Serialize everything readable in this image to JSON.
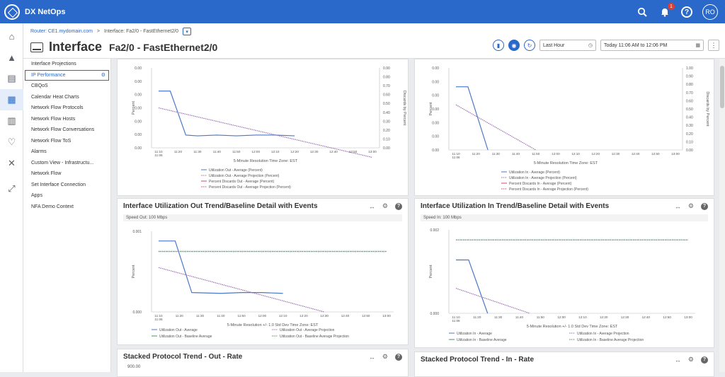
{
  "app": {
    "title": "DX NetOps",
    "notif_count": "1",
    "user_initials": "RO"
  },
  "breadcrumb": {
    "router": "Router: CE1.mydomain.com",
    "sep": ">",
    "current": "Interface: Fa2/0 - FastEthernet2/0"
  },
  "page": {
    "title": "Interface",
    "subtitle": "Fa2/0 - FastEthernet2/0"
  },
  "controls": {
    "range": "Last Hour",
    "date": "Today 11:06 AM to 12:06 PM"
  },
  "sidebar": {
    "items": [
      {
        "label": "Interface Projections"
      },
      {
        "label": "IP Performance"
      },
      {
        "label": "CBQoS"
      },
      {
        "label": "Calendar Heat Charts"
      },
      {
        "label": "Network Flow Protocols"
      },
      {
        "label": "Network Flow Hosts"
      },
      {
        "label": "Network Flow Conversations"
      },
      {
        "label": "Network Flow ToS"
      },
      {
        "label": "Alarms"
      },
      {
        "label": "Custom View - Infrastructu..."
      },
      {
        "label": "Network Flow"
      },
      {
        "label": "Set Interface Connection"
      },
      {
        "label": "Apps"
      },
      {
        "label": "NFA Demo Context"
      }
    ]
  },
  "panels": {
    "tl": {
      "y_left": [
        "0.00",
        "0.00",
        "0.00",
        "0.00",
        "0.00",
        "0.00",
        "0.00"
      ],
      "y_right": [
        "0.90",
        "0.80",
        "0.70",
        "0.60",
        "0.50",
        "0.40",
        "0.30",
        "0.20",
        "0.10",
        "0.00"
      ],
      "ylabel": "Percent",
      "ylabel2": "Discards by Percent",
      "xticks": [
        "11:10\n11:06",
        "11:20",
        "11:30",
        "11:40",
        "11:50",
        "12:00",
        "12:10",
        "12:20",
        "12:30",
        "12:40",
        "12:50",
        "13:00"
      ],
      "xlabel": "5-Minute Resolution Time Zone: EST",
      "legend": [
        "Utilization Out - Average (Percent)",
        "Utilization Out - Average Projection (Percent)",
        "Percent Discards Out - Average (Percent)",
        "Percent Discards Out - Average Projection (Percent)"
      ]
    },
    "tr": {
      "y_left": [
        "0.00",
        "0.00",
        "0.00",
        "0.00",
        "0.00",
        "0.00",
        "0.00"
      ],
      "y_right": [
        "1.00",
        "0.90",
        "0.80",
        "0.70",
        "0.60",
        "0.50",
        "0.40",
        "0.30",
        "0.20",
        "0.10",
        "0.00"
      ],
      "ylabel": "Percent",
      "ylabel2": "Discards by Percent",
      "xticks": [
        "11:10\n11:06",
        "11:20",
        "11:30",
        "11:40",
        "11:50",
        "12:00",
        "12:10",
        "12:20",
        "12:30",
        "12:40",
        "12:50",
        "13:00"
      ],
      "xlabel": "5-Minute Resolution Time Zone: EST",
      "legend": [
        "Utilization In - Average (Percent)",
        "Utilization In - Average Projection (Percent)",
        "Percent Discards In - Average (Percent)",
        "Percent Discards In - Average Projection (Percent)"
      ]
    },
    "ml": {
      "title": "Interface Utilization Out Trend/Baseline Detail with Events",
      "speed": "Speed Out: 100 Mbps",
      "y": [
        "0.001",
        "0.000"
      ],
      "ylabel": "Percent",
      "xticks": [
        "11:10\n11:06",
        "11:20",
        "11:30",
        "11:40",
        "11:50",
        "12:00",
        "12:10",
        "12:20",
        "12:30",
        "12:40",
        "12:50",
        "13:00"
      ],
      "xlabel": "5-Minute Resolution +/- 1.0 Std Dev Time Zone: EST",
      "legend": [
        "Utilization Out - Average",
        "Utilization Out - Average Projection",
        "Utilization Out - Baseline Average",
        "Utilization Out - Baseline Average Projection"
      ]
    },
    "mr": {
      "title": "Interface Utilization In Trend/Baseline Detail with Events",
      "speed": "Speed In: 100 Mbps",
      "y": [
        "0.002",
        "0.000"
      ],
      "ylabel": "Percent",
      "xticks": [
        "11:10\n11:06",
        "11:20",
        "11:30",
        "11:40",
        "11:50",
        "12:00",
        "12:10",
        "12:20",
        "12:30",
        "12:40",
        "12:50",
        "13:00"
      ],
      "xlabel": "5-Minute Resolution +/- 1.0 Std Dev Time Zone: EST",
      "legend": [
        "Utilization In - Average",
        "Utilization In - Average Projection",
        "Utilization In - Baseline Average",
        "Utilization In - Baseline Average Projection"
      ]
    },
    "bl": {
      "title": "Stacked Protocol Trend - Out - Rate",
      "y": "900.00"
    },
    "br": {
      "title": "Stacked Protocol Trend - In - Rate"
    }
  },
  "colors": {
    "accent": "#2a68c9",
    "series_blue": "#4a78c8",
    "series_green": "#4f8f6e",
    "series_purple": "#9b6fb3",
    "series_red": "#c9487a"
  }
}
